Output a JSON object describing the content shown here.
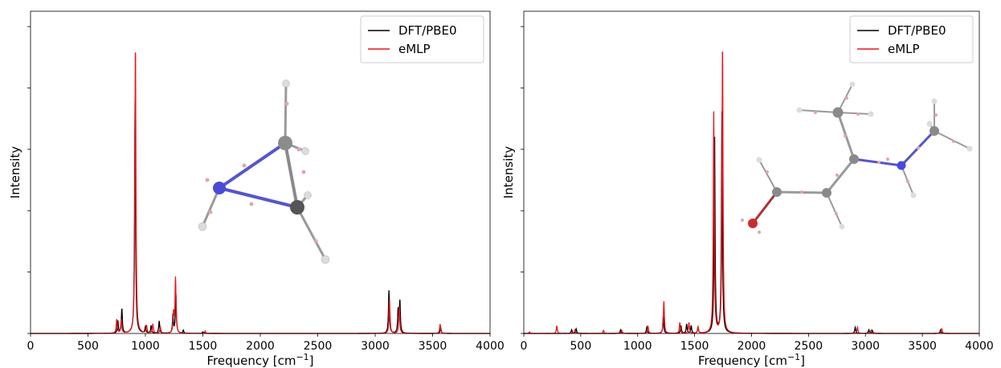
{
  "chart_data": [
    {
      "type": "line",
      "xlabel": "Frequency [cm$^{-1}$]",
      "xlabel_text": "Frequency [cm",
      "xlabel_sup": "−1",
      "xlabel_end": "]",
      "ylabel": "Intensity",
      "xlim": [
        0,
        4000
      ],
      "ylim": [
        0,
        1.0
      ],
      "xticks": [
        "0",
        "500",
        "1000",
        "1500",
        "2000",
        "2500",
        "3000",
        "3500",
        "4000"
      ],
      "grid": false,
      "legend_position": "top-right",
      "inset": "molecule-structure-aziridine-like",
      "series": [
        {
          "name": "DFT/PBE0",
          "color": "#000000",
          "peaks": [
            {
              "x": 760,
              "y": 0.04
            },
            {
              "x": 795,
              "y": 0.08
            },
            {
              "x": 910,
              "y": 0.76
            },
            {
              "x": 1000,
              "y": 0.02
            },
            {
              "x": 1050,
              "y": 0.025
            },
            {
              "x": 1120,
              "y": 0.04
            },
            {
              "x": 1240,
              "y": 0.06
            },
            {
              "x": 1265,
              "y": 0.13
            },
            {
              "x": 1330,
              "y": 0.01
            },
            {
              "x": 1500,
              "y": 0.005
            },
            {
              "x": 3120,
              "y": 0.14
            },
            {
              "x": 3200,
              "y": 0.075
            },
            {
              "x": 3215,
              "y": 0.105
            },
            {
              "x": 3570,
              "y": 0.02
            }
          ]
        },
        {
          "name": "eMLP",
          "color": "#e8161b",
          "peaks": [
            {
              "x": 750,
              "y": 0.045
            },
            {
              "x": 790,
              "y": 0.045
            },
            {
              "x": 913,
              "y": 0.95
            },
            {
              "x": 1010,
              "y": 0.025
            },
            {
              "x": 1065,
              "y": 0.03
            },
            {
              "x": 1130,
              "y": 0.02
            },
            {
              "x": 1245,
              "y": 0.065
            },
            {
              "x": 1262,
              "y": 0.18
            },
            {
              "x": 1520,
              "y": 0.008
            },
            {
              "x": 3125,
              "y": 0.11
            },
            {
              "x": 3210,
              "y": 0.085
            },
            {
              "x": 3565,
              "y": 0.03
            }
          ]
        }
      ]
    },
    {
      "type": "line",
      "xlabel": "Frequency [cm$^{-1}$]",
      "xlabel_text": "Frequency [cm",
      "xlabel_sup": "−1",
      "xlabel_end": "]",
      "ylabel": "Intensity",
      "xlim": [
        0,
        4000
      ],
      "ylim": [
        0,
        1.0
      ],
      "xticks": [
        "0",
        "500",
        "1000",
        "1500",
        "2000",
        "2500",
        "3000",
        "3500",
        "4000"
      ],
      "grid": false,
      "legend_position": "top-right",
      "inset": "molecule-structure-chain",
      "series": [
        {
          "name": "DFT/PBE0",
          "color": "#000000",
          "peaks": [
            {
              "x": 420,
              "y": 0.012
            },
            {
              "x": 460,
              "y": 0.015
            },
            {
              "x": 850,
              "y": 0.012
            },
            {
              "x": 1080,
              "y": 0.02
            },
            {
              "x": 1225,
              "y": 0.055
            },
            {
              "x": 1380,
              "y": 0.025
            },
            {
              "x": 1430,
              "y": 0.03
            },
            {
              "x": 1470,
              "y": 0.025
            },
            {
              "x": 1530,
              "y": 0.02
            },
            {
              "x": 1675,
              "y": 0.66
            },
            {
              "x": 1740,
              "y": 0.72
            },
            {
              "x": 2910,
              "y": 0.02
            },
            {
              "x": 3030,
              "y": 0.012
            },
            {
              "x": 3060,
              "y": 0.01
            },
            {
              "x": 3660,
              "y": 0.012
            }
          ]
        },
        {
          "name": "eMLP",
          "color": "#e8161b",
          "peaks": [
            {
              "x": 50,
              "y": 0.005
            },
            {
              "x": 290,
              "y": 0.025
            },
            {
              "x": 450,
              "y": 0.012
            },
            {
              "x": 700,
              "y": 0.01
            },
            {
              "x": 860,
              "y": 0.01
            },
            {
              "x": 1090,
              "y": 0.025
            },
            {
              "x": 1230,
              "y": 0.105
            },
            {
              "x": 1370,
              "y": 0.035
            },
            {
              "x": 1450,
              "y": 0.035
            },
            {
              "x": 1530,
              "y": 0.02
            },
            {
              "x": 1668,
              "y": 0.72
            },
            {
              "x": 1745,
              "y": 0.95
            },
            {
              "x": 2930,
              "y": 0.02
            },
            {
              "x": 3050,
              "y": 0.01
            },
            {
              "x": 3670,
              "y": 0.015
            }
          ]
        }
      ]
    }
  ]
}
